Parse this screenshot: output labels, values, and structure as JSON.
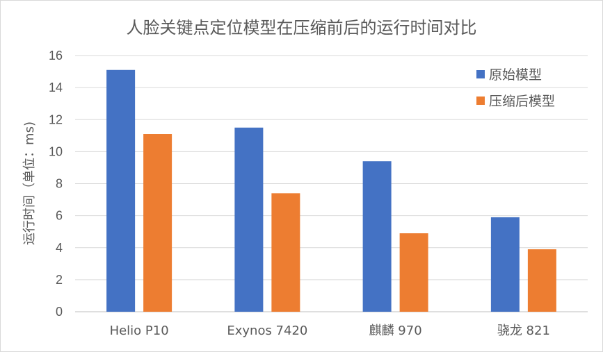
{
  "chart_data": {
    "type": "bar",
    "title": "人脸关键点定位模型在压缩前后的运行时间对比",
    "xlabel": "",
    "ylabel": "运行时间（单位：ms)",
    "categories": [
      "Helio P10",
      "Exynos 7420",
      "麒麟 970",
      "骁龙 821"
    ],
    "series": [
      {
        "name": "原始模型",
        "values": [
          15.1,
          11.5,
          9.4,
          5.9
        ],
        "color": "#4472c4"
      },
      {
        "name": "压缩后模型",
        "values": [
          11.1,
          7.4,
          4.9,
          3.9
        ],
        "color": "#ed7d31"
      }
    ],
    "ylim": [
      0,
      16
    ],
    "yticks": [
      0,
      2,
      4,
      6,
      8,
      10,
      12,
      14,
      16
    ],
    "grid": true,
    "legend": "top-right"
  }
}
